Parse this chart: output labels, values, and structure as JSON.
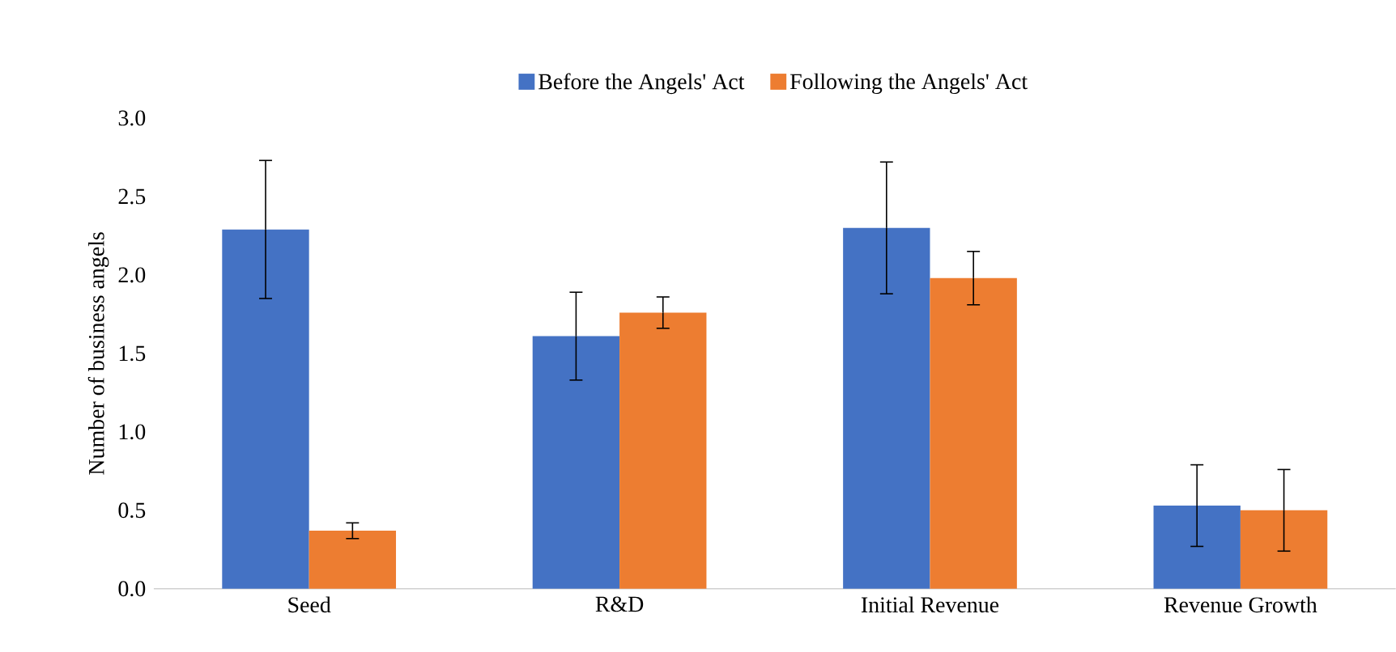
{
  "chart_data": {
    "type": "bar",
    "ylabel": "Number of business angels",
    "categories": [
      "Seed",
      "R&D",
      "Initial Revenue",
      "Revenue Growth"
    ],
    "series": [
      {
        "name": "Before the Angels' Act",
        "color": "#4472c4",
        "values": [
          2.29,
          1.61,
          2.3,
          0.53
        ],
        "errors": [
          0.44,
          0.28,
          0.42,
          0.26
        ]
      },
      {
        "name": "Following the Angels' Act",
        "color": "#ed7d31",
        "values": [
          0.37,
          1.76,
          1.98,
          0.5
        ],
        "errors": [
          0.05,
          0.1,
          0.17,
          0.26
        ]
      }
    ],
    "ylim": [
      0,
      3
    ],
    "yticks": [
      {
        "value": 0,
        "label": "0.0"
      },
      {
        "value": 0.5,
        "label": "0.5"
      },
      {
        "value": 1,
        "label": "1.0"
      },
      {
        "value": 1.5,
        "label": "1.5"
      },
      {
        "value": 2,
        "label": "2.0"
      },
      {
        "value": 2.5,
        "label": "2.5"
      },
      {
        "value": 3,
        "label": "3.0"
      }
    ],
    "grid": false,
    "legend": "top"
  }
}
